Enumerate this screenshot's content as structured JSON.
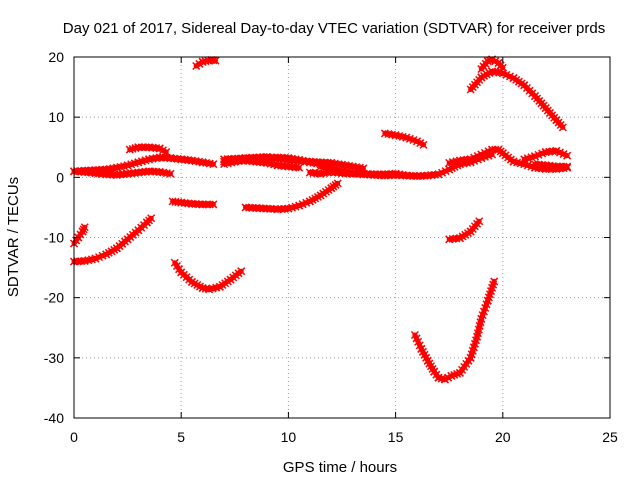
{
  "chart_data": {
    "type": "scatter",
    "title": "Day 021 of 2017, Sidereal Day-to-day VTEC variation (SDTVAR) for receiver prds",
    "xlabel": "GPS time / hours",
    "ylabel": "SDTVAR / TECUs",
    "xlim": [
      0,
      25
    ],
    "ylim": [
      -40,
      20
    ],
    "xticks": [
      0,
      5,
      10,
      15,
      20,
      25
    ],
    "yticks": [
      -40,
      -30,
      -20,
      -10,
      0,
      10,
      20
    ],
    "grid": true,
    "grid_style": "dotted",
    "legend": "none",
    "marker_color": "#ff0000",
    "series": [
      {
        "points": [
          [
            0.0,
            1.0
          ],
          [
            0.5,
            1.1
          ],
          [
            1.0,
            1.2
          ],
          [
            1.5,
            1.3
          ],
          [
            2.0,
            1.6
          ],
          [
            2.5,
            2.0
          ],
          [
            3.0,
            2.5
          ],
          [
            3.5,
            3.0
          ],
          [
            4.0,
            3.3
          ],
          [
            4.5,
            3.2
          ],
          [
            5.0,
            3.0
          ],
          [
            5.5,
            2.8
          ],
          [
            6.0,
            2.5
          ],
          [
            6.5,
            2.2
          ]
        ]
      },
      {
        "points": [
          [
            0.0,
            1.0
          ],
          [
            0.5,
            0.9
          ],
          [
            1.0,
            0.7
          ],
          [
            1.5,
            0.5
          ],
          [
            2.0,
            0.4
          ],
          [
            2.5,
            0.6
          ],
          [
            3.0,
            0.8
          ],
          [
            3.5,
            1.0
          ],
          [
            4.0,
            0.9
          ],
          [
            4.5,
            0.6
          ]
        ]
      },
      {
        "points": [
          [
            2.6,
            4.6
          ],
          [
            3.0,
            5.0
          ],
          [
            3.5,
            5.0
          ],
          [
            4.0,
            4.8
          ],
          [
            4.3,
            4.2
          ]
        ]
      },
      {
        "points": [
          [
            0.0,
            -11.0
          ],
          [
            0.2,
            -10.0
          ],
          [
            0.4,
            -9.0
          ],
          [
            0.5,
            -8.3
          ]
        ]
      },
      {
        "points": [
          [
            0.0,
            -14.0
          ],
          [
            0.5,
            -13.9
          ],
          [
            1.0,
            -13.5
          ],
          [
            1.5,
            -12.8
          ],
          [
            2.0,
            -11.8
          ],
          [
            2.5,
            -10.3
          ],
          [
            3.0,
            -8.8
          ],
          [
            3.4,
            -7.5
          ],
          [
            3.6,
            -6.8
          ]
        ]
      },
      {
        "points": [
          [
            4.7,
            -14.2
          ],
          [
            5.0,
            -15.8
          ],
          [
            5.5,
            -17.4
          ],
          [
            6.0,
            -18.4
          ],
          [
            6.3,
            -18.6
          ],
          [
            6.8,
            -18.2
          ],
          [
            7.3,
            -17.0
          ],
          [
            7.8,
            -15.6
          ]
        ]
      },
      {
        "points": [
          [
            4.6,
            -4.0
          ],
          [
            5.0,
            -4.2
          ],
          [
            5.5,
            -4.4
          ],
          [
            6.0,
            -4.5
          ],
          [
            6.5,
            -4.5
          ]
        ]
      },
      {
        "points": [
          [
            5.7,
            18.5
          ],
          [
            6.0,
            19.2
          ],
          [
            6.4,
            19.5
          ],
          [
            6.6,
            19.4
          ]
        ]
      },
      {
        "points": [
          [
            7.0,
            2.2
          ],
          [
            7.5,
            2.6
          ],
          [
            8.0,
            2.9
          ],
          [
            8.5,
            3.1
          ],
          [
            9.0,
            3.2
          ],
          [
            9.5,
            3.3
          ],
          [
            10.0,
            3.2
          ],
          [
            10.5,
            2.9
          ],
          [
            11.0,
            2.5
          ],
          [
            11.5,
            2.2
          ],
          [
            12.0,
            1.9
          ]
        ]
      },
      {
        "points": [
          [
            7.0,
            2.6
          ],
          [
            7.5,
            2.7
          ],
          [
            8.0,
            2.8
          ],
          [
            8.5,
            2.6
          ],
          [
            9.0,
            2.4
          ],
          [
            9.5,
            2.0
          ],
          [
            10.0,
            1.8
          ],
          [
            10.5,
            1.6
          ]
        ]
      },
      {
        "points": [
          [
            7.0,
            3.0
          ],
          [
            8.0,
            3.2
          ],
          [
            9.0,
            3.4
          ],
          [
            10.0,
            2.9
          ],
          [
            11.0,
            2.6
          ],
          [
            12.0,
            2.4
          ],
          [
            13.0,
            1.8
          ],
          [
            13.5,
            1.5
          ]
        ]
      },
      {
        "points": [
          [
            8.0,
            -5.0
          ],
          [
            8.5,
            -5.1
          ],
          [
            9.0,
            -5.2
          ],
          [
            9.5,
            -5.3
          ],
          [
            10.0,
            -5.2
          ],
          [
            10.5,
            -4.7
          ]
        ]
      },
      {
        "points": [
          [
            10.5,
            -4.7
          ],
          [
            11.0,
            -4.0
          ],
          [
            11.5,
            -3.0
          ],
          [
            12.0,
            -1.8
          ],
          [
            12.3,
            -1.0
          ]
        ]
      },
      {
        "points": [
          [
            11.5,
            1.8
          ],
          [
            12.0,
            1.4
          ],
          [
            12.5,
            1.0
          ],
          [
            13.0,
            0.7
          ],
          [
            13.5,
            0.5
          ],
          [
            14.0,
            0.4
          ],
          [
            14.5,
            0.3
          ],
          [
            15.0,
            0.4
          ],
          [
            15.5,
            0.3
          ],
          [
            16.0,
            0.2
          ],
          [
            16.5,
            0.3
          ],
          [
            17.0,
            0.5
          ],
          [
            17.5,
            1.3
          ],
          [
            18.0,
            2.2
          ],
          [
            18.5,
            2.5
          ],
          [
            19.0,
            3.2
          ],
          [
            19.5,
            3.8
          ]
        ]
      },
      {
        "points": [
          [
            11.0,
            0.8
          ],
          [
            11.5,
            0.6
          ],
          [
            12.0,
            0.9
          ],
          [
            12.5,
            0.7
          ],
          [
            13.0,
            0.6
          ],
          [
            13.5,
            0.6
          ],
          [
            14.0,
            0.5
          ],
          [
            14.5,
            0.5
          ],
          [
            15.0,
            0.6
          ],
          [
            15.5,
            0.3
          ]
        ]
      },
      {
        "points": [
          [
            14.5,
            7.3
          ],
          [
            15.0,
            7.0
          ],
          [
            15.5,
            6.6
          ],
          [
            16.0,
            6.0
          ],
          [
            16.3,
            5.4
          ]
        ]
      },
      {
        "points": [
          [
            15.9,
            -26.2
          ],
          [
            16.2,
            -28.5
          ],
          [
            16.5,
            -30.5
          ],
          [
            16.8,
            -32.3
          ],
          [
            17.0,
            -33.3
          ],
          [
            17.3,
            -33.6
          ],
          [
            17.6,
            -33.0
          ],
          [
            18.0,
            -32.5
          ],
          [
            18.5,
            -30.0
          ],
          [
            18.8,
            -26.5
          ],
          [
            19.0,
            -23.5
          ],
          [
            19.3,
            -20.5
          ],
          [
            19.6,
            -17.3
          ]
        ]
      },
      {
        "points": [
          [
            17.5,
            -10.3
          ],
          [
            18.0,
            -10.1
          ],
          [
            18.5,
            -9.0
          ],
          [
            18.9,
            -7.3
          ]
        ]
      },
      {
        "points": [
          [
            17.5,
            2.4
          ],
          [
            18.0,
            2.8
          ],
          [
            18.5,
            3.0
          ],
          [
            19.0,
            3.8
          ],
          [
            19.5,
            4.6
          ],
          [
            19.8,
            4.6
          ],
          [
            20.0,
            4.0
          ],
          [
            20.5,
            2.6
          ],
          [
            21.0,
            2.2
          ],
          [
            21.5,
            1.6
          ],
          [
            22.0,
            1.4
          ],
          [
            22.5,
            1.4
          ],
          [
            23.0,
            1.6
          ]
        ]
      },
      {
        "points": [
          [
            18.5,
            14.6
          ],
          [
            19.0,
            16.6
          ],
          [
            19.5,
            17.6
          ],
          [
            20.0,
            17.3
          ],
          [
            20.5,
            16.5
          ],
          [
            21.0,
            15.3
          ],
          [
            21.5,
            13.5
          ],
          [
            22.0,
            11.5
          ],
          [
            22.5,
            9.5
          ],
          [
            22.8,
            8.3
          ]
        ]
      },
      {
        "points": [
          [
            19.0,
            18.0
          ],
          [
            19.3,
            19.3
          ],
          [
            19.5,
            19.6
          ],
          [
            19.8,
            19.0
          ],
          [
            20.0,
            18.2
          ]
        ]
      },
      {
        "points": [
          [
            21.0,
            3.0
          ],
          [
            21.5,
            3.5
          ],
          [
            22.0,
            4.2
          ],
          [
            22.5,
            4.4
          ],
          [
            23.0,
            3.6
          ]
        ]
      },
      {
        "points": [
          [
            21.5,
            2.2
          ],
          [
            22.0,
            2.0
          ],
          [
            22.5,
            1.8
          ],
          [
            23.0,
            1.8
          ]
        ]
      }
    ]
  }
}
